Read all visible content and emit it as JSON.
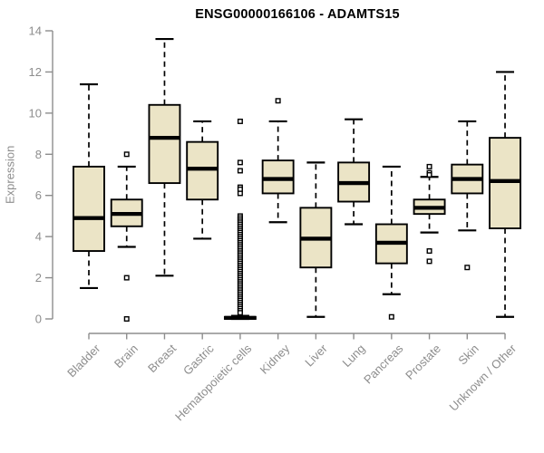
{
  "title": "ENSG00000166106 - ADAMTS15",
  "chart_data": {
    "type": "boxplot",
    "title": "ENSG00000166106 - ADAMTS15",
    "xlabel": "",
    "ylabel": "Expression",
    "ylim": [
      0,
      14
    ],
    "yticks": [
      0,
      2,
      4,
      6,
      8,
      10,
      12,
      14
    ],
    "grid": false,
    "legend": "none",
    "categories": [
      "Bladder",
      "Brain",
      "Breast",
      "Gastric",
      "Hematopoietic cells",
      "Kidney",
      "Liver",
      "Lung",
      "Pancreas",
      "Prostate",
      "Skin",
      "Unknown / Other"
    ],
    "series": [
      {
        "category": "Bladder",
        "whisker_low": 1.5,
        "q1": 3.3,
        "median": 4.9,
        "q3": 7.4,
        "whisker_high": 11.4,
        "outliers": []
      },
      {
        "category": "Brain",
        "whisker_low": 3.5,
        "q1": 4.5,
        "median": 5.1,
        "q3": 5.8,
        "whisker_high": 7.4,
        "outliers": [
          8.0,
          2.0,
          0.0
        ]
      },
      {
        "category": "Breast",
        "whisker_low": 2.1,
        "q1": 6.6,
        "median": 8.8,
        "q3": 10.4,
        "whisker_high": 13.6,
        "outliers": []
      },
      {
        "category": "Gastric",
        "whisker_low": 3.9,
        "q1": 5.8,
        "median": 7.3,
        "q3": 8.6,
        "whisker_high": 9.6,
        "outliers": []
      },
      {
        "category": "Hematopoietic cells",
        "whisker_low": 0.0,
        "q1": 0.0,
        "median": 0.05,
        "q3": 0.1,
        "whisker_high": 0.15,
        "outliers": [
          9.6,
          7.6,
          7.2,
          6.4,
          6.3,
          6.1,
          5.0,
          4.9,
          4.8,
          4.7,
          4.6,
          4.5,
          4.4,
          4.3,
          4.2,
          4.1,
          4.0,
          3.9,
          3.8,
          3.7,
          3.6,
          3.5,
          3.4,
          3.3,
          3.2,
          3.1,
          3.0,
          2.9,
          2.8,
          2.7,
          2.6,
          2.5,
          2.4,
          2.3,
          2.2,
          2.1,
          2.0,
          1.9,
          1.8,
          1.7,
          1.6,
          1.5,
          1.4,
          1.3,
          1.2,
          1.1,
          1.0,
          0.9,
          0.8,
          0.7,
          0.6,
          0.5,
          0.4,
          0.3
        ]
      },
      {
        "category": "Kidney",
        "whisker_low": 4.7,
        "q1": 6.1,
        "median": 6.8,
        "q3": 7.7,
        "whisker_high": 9.6,
        "outliers": [
          10.6
        ]
      },
      {
        "category": "Liver",
        "whisker_low": 0.1,
        "q1": 2.5,
        "median": 3.9,
        "q3": 5.4,
        "whisker_high": 7.6,
        "outliers": []
      },
      {
        "category": "Lung",
        "whisker_low": 4.6,
        "q1": 5.7,
        "median": 6.6,
        "q3": 7.6,
        "whisker_high": 9.7,
        "outliers": []
      },
      {
        "category": "Pancreas",
        "whisker_low": 1.2,
        "q1": 2.7,
        "median": 3.7,
        "q3": 4.6,
        "whisker_high": 7.4,
        "outliers": [
          0.1
        ]
      },
      {
        "category": "Prostate",
        "whisker_low": 4.2,
        "q1": 5.1,
        "median": 5.4,
        "q3": 5.8,
        "whisker_high": 6.9,
        "outliers": [
          7.4,
          7.1,
          7.0,
          3.3,
          2.8
        ]
      },
      {
        "category": "Skin",
        "whisker_low": 4.3,
        "q1": 6.1,
        "median": 6.8,
        "q3": 7.5,
        "whisker_high": 9.6,
        "outliers": [
          2.5
        ]
      },
      {
        "category": "Unknown / Other",
        "whisker_low": 0.1,
        "q1": 4.4,
        "median": 6.7,
        "q3": 8.8,
        "whisker_high": 12.0,
        "outliers": []
      }
    ],
    "colors": {
      "box_fill": "#ebe4c6",
      "box_border": "#000000",
      "median": "#000000",
      "whisker": "#000000",
      "outlier_stroke": "#000000",
      "axis": "#8d8d8d",
      "tick_label": "#8d8d8d",
      "title": "#000000",
      "background": "#ffffff"
    }
  }
}
